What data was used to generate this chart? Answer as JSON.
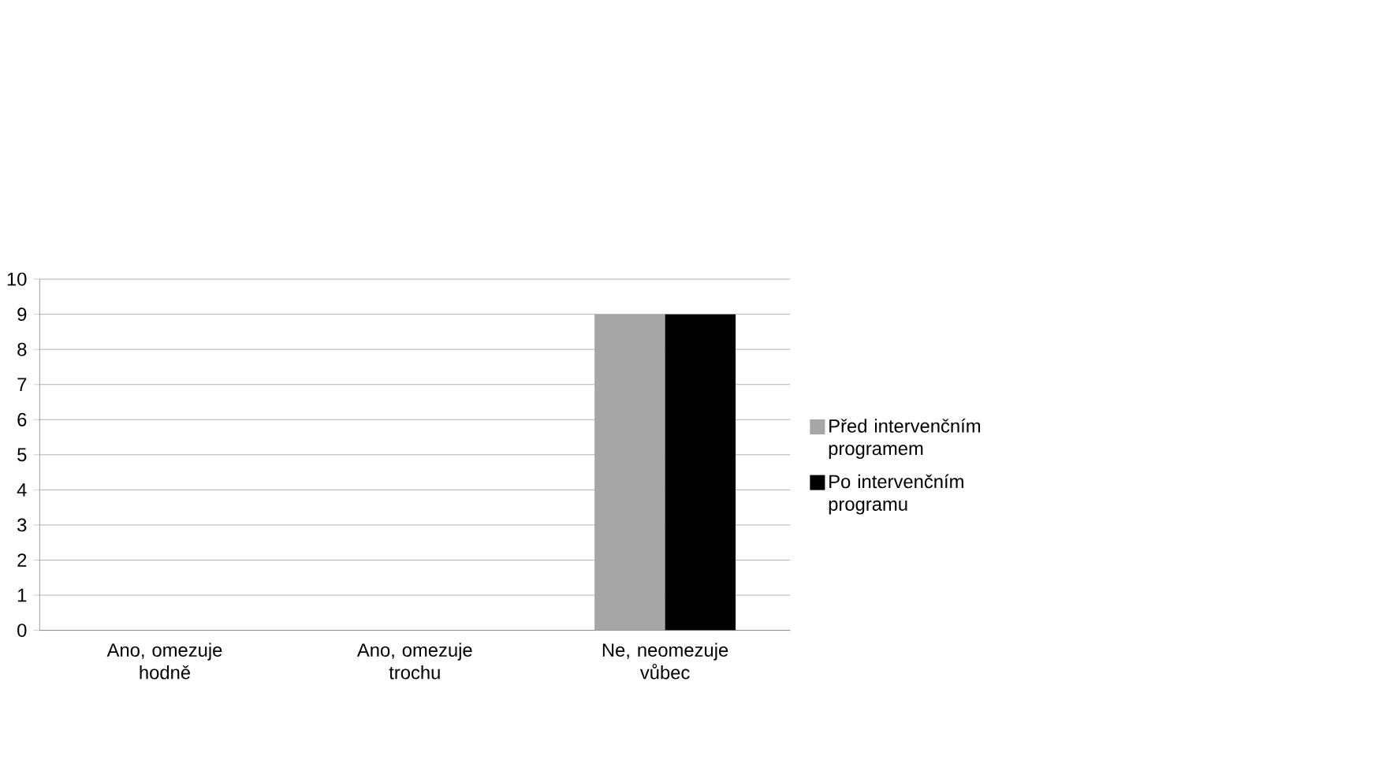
{
  "chart_data": {
    "type": "bar",
    "categories": [
      "Ano, omezuje hodně",
      "Ano, omezuje trochu",
      "Ne, neomezuje vůbec"
    ],
    "series": [
      {
        "name": "Před intervenčním programem",
        "color": "#a6a6a6",
        "values": [
          0,
          0,
          9
        ]
      },
      {
        "name": "Po intervenčním programu",
        "color": "#000000",
        "values": [
          0,
          0,
          9
        ]
      }
    ],
    "ylim": [
      0,
      10
    ],
    "yticks": [
      0,
      1,
      2,
      3,
      4,
      5,
      6,
      7,
      8,
      9,
      10
    ],
    "grid": "y",
    "legend": "right"
  }
}
